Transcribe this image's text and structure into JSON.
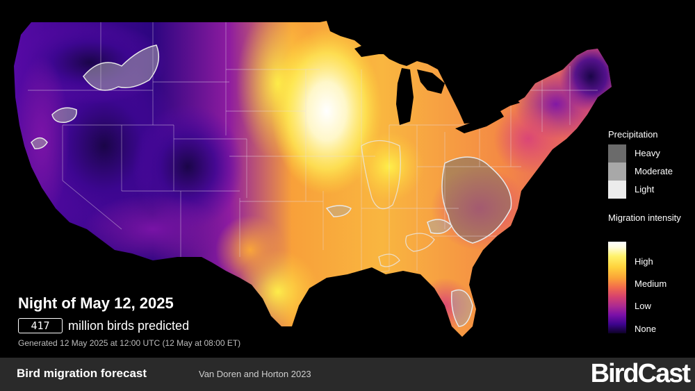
{
  "title": "Night of May 12, 2025",
  "prediction": {
    "count": "417",
    "suffix": "million birds predicted"
  },
  "generated": "Generated 12 May 2025 at 12:00 UTC (12 May at 08:00 ET)",
  "legend": {
    "precipitation": {
      "title": "Precipitation",
      "levels": [
        {
          "label": "Heavy",
          "color": "#6b6b6b"
        },
        {
          "label": "Moderate",
          "color": "#a8a8a8"
        },
        {
          "label": "Light",
          "color": "#ececec"
        }
      ]
    },
    "migration": {
      "title": "Migration intensity",
      "levels": [
        "High",
        "Medium",
        "Low",
        "None"
      ]
    }
  },
  "colors": {
    "none": "#0d0226",
    "low": "#3d048e",
    "medium": "#f47f3d",
    "high": "#ffffff",
    "background": "#000000",
    "footer": "#2a2a2a"
  },
  "footer": {
    "title": "Bird migration forecast",
    "credit": "Van Doren and Horton 2023",
    "brand": "BirdCast"
  }
}
